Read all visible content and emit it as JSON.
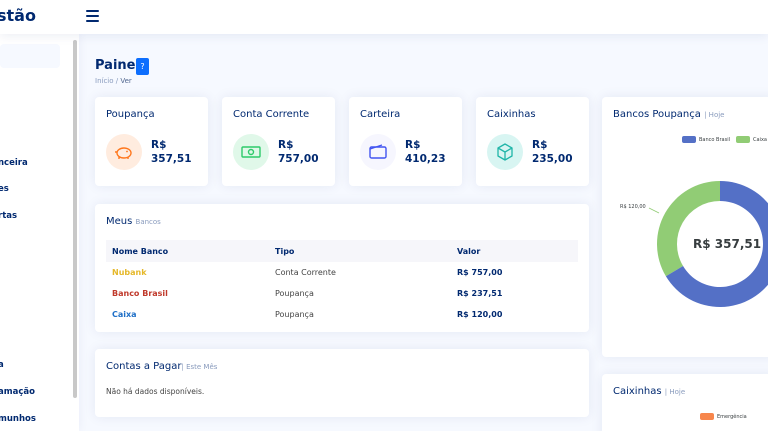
{
  "header": {
    "logo_text": "stão"
  },
  "sidebar": {
    "items": [
      {
        "label": "nceira"
      },
      {
        "label": "es"
      },
      {
        "label": "rtas"
      },
      {
        "label": "a"
      },
      {
        "label": "amação"
      },
      {
        "label": "munhos"
      }
    ]
  },
  "page": {
    "title": "Painel",
    "help": "?",
    "breadcrumb": [
      "Início",
      "/",
      "Ver"
    ]
  },
  "stats": [
    {
      "title": "Poupança",
      "value_line1": "R$",
      "value_line2": "357,51",
      "icon": "piggy-bank-icon",
      "bg": "#ffecdf",
      "color": "#ff771d"
    },
    {
      "title": "Conta Corrente",
      "value_line1": "R$",
      "value_line2": "757,00",
      "icon": "cash-icon",
      "bg": "#e0f8e9",
      "color": "#2eca6a"
    },
    {
      "title": "Carteira",
      "value_line1": "R$",
      "value_line2": "410,23",
      "icon": "wallet-icon",
      "bg": "#f6f6fe",
      "color": "#4154f1"
    },
    {
      "title": "Caixinhas",
      "value_line1": "R$",
      "value_line2": "235,00",
      "icon": "box-icon",
      "bg": "#d8f5f2",
      "color": "#20b5a8"
    }
  ],
  "banks": {
    "title": "Meus",
    "subtitle": "Bancos",
    "headers": [
      "Nome Banco",
      "Tipo",
      "Valor"
    ],
    "rows": [
      {
        "name": "Nubank",
        "type": "Conta Corrente",
        "value": "R$ 757,00",
        "color": "#e5b82a"
      },
      {
        "name": "Banco Brasil",
        "type": "Poupança",
        "value": "R$ 237,51",
        "color": "#c0392b"
      },
      {
        "name": "Caixa",
        "type": "Poupança",
        "value": "R$ 120,00",
        "color": "#1e6fc7"
      }
    ]
  },
  "payables": {
    "title": "Contas a Pagar",
    "subtitle": "| Este Mês",
    "empty": "Não há dados disponíveis."
  },
  "savings_banks": {
    "title": "Bancos Poupança",
    "subtitle": "| Hoje",
    "center_label": "R$ 357,51",
    "annotation": "R$ 120,00"
  },
  "boxes": {
    "title": "Caixinhas",
    "subtitle": "| Hoje",
    "legend": [
      {
        "name": "Emergência",
        "color": "#f7864c"
      }
    ]
  },
  "chart_data": {
    "type": "pie",
    "title": "Bancos Poupança",
    "categories": [
      "Banco Brasil",
      "Caixa"
    ],
    "values": [
      237.51,
      120.0
    ],
    "colors": [
      "#5470c6",
      "#91cc75"
    ],
    "total_label": "R$ 357,51",
    "legend": "top-right"
  }
}
